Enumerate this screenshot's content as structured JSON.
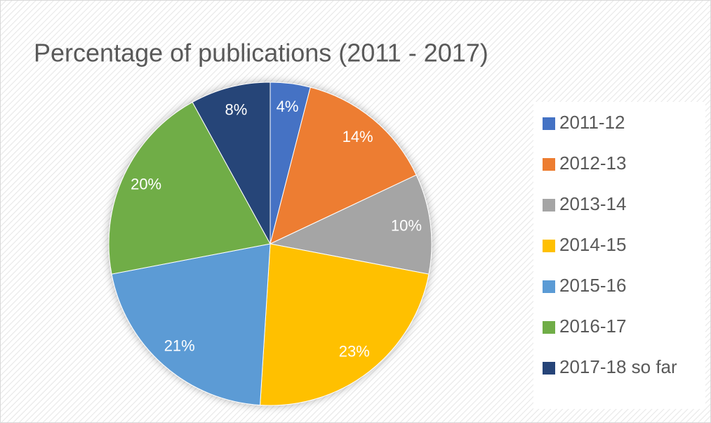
{
  "chart_data": {
    "type": "pie",
    "title": "Percentage of publications (2011 - 2017)",
    "categories": [
      "2011-12",
      "2012-13",
      "2013-14",
      "2014-15",
      "2015-16",
      "2016-17",
      "2017-18 so far"
    ],
    "values": [
      4,
      14,
      10,
      23,
      21,
      20,
      8
    ],
    "value_labels": [
      "4%",
      "14%",
      "10%",
      "23%",
      "21%",
      "20%",
      "8%"
    ],
    "colors": [
      "#4472c4",
      "#ed7d31",
      "#a5a5a5",
      "#ffc000",
      "#5b9bd5",
      "#70ad47",
      "#264478"
    ],
    "legend": "right"
  }
}
